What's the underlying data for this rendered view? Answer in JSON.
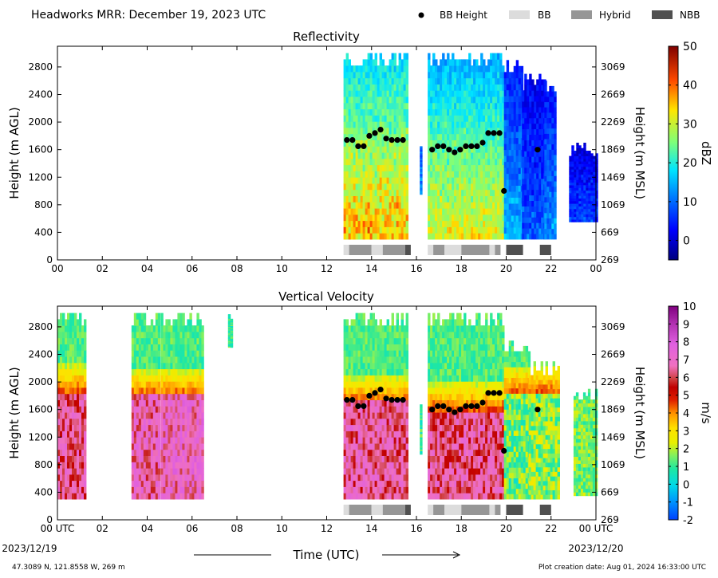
{
  "header": {
    "title": "Headworks MRR:  December 19, 2023 UTC",
    "legend": [
      {
        "label": "BB Height",
        "kind": "dot",
        "color": "#000000"
      },
      {
        "label": "BB",
        "kind": "box",
        "color": "#dcdcdc"
      },
      {
        "label": "Hybrid",
        "kind": "box",
        "color": "#969696"
      },
      {
        "label": "NBB",
        "kind": "box",
        "color": "#505050"
      }
    ]
  },
  "footer": {
    "location": "47.3089 N, 121.8558 W, 269 m",
    "creation": "Plot creation date: Aug 01, 2024 16:33:00 UTC",
    "xlabel": "Time (UTC)",
    "start_label": "00 UTC",
    "start_date": "2023/12/19",
    "end_label": "00 UTC",
    "end_date": "2023/12/20"
  },
  "chart_data": [
    {
      "type": "heatmap",
      "title": "Reflectivity",
      "xlabel": "",
      "ylabel": "Height (m AGL)",
      "ylabel_right": "Height (m MSL)",
      "xlim": [
        0,
        24
      ],
      "ylim": [
        0,
        3100
      ],
      "x_ticks": [
        "00",
        "02",
        "04",
        "06",
        "08",
        "10",
        "12",
        "14",
        "16",
        "18",
        "20",
        "22",
        "00"
      ],
      "y_ticks": [
        0,
        400,
        800,
        1200,
        1600,
        2000,
        2400,
        2800
      ],
      "y_ticks_right": [
        269,
        669,
        1069,
        1469,
        1869,
        2269,
        2669,
        3069
      ],
      "colorbar": {
        "label": "dBZ",
        "min": -5,
        "max": 50,
        "ticks": [
          0,
          10,
          20,
          30,
          40,
          50
        ]
      },
      "data_segments": [
        {
          "start": 12.75,
          "end": 15.6,
          "top": 3000,
          "bottom": 300,
          "core": [
            30,
            42
          ],
          "edge": 15
        },
        {
          "start": 16.15,
          "end": 16.22,
          "top": 1700,
          "bottom": 950,
          "core": [
            10,
            14
          ],
          "edge": 8
        },
        {
          "start": 16.5,
          "end": 19.9,
          "top": 3000,
          "bottom": 300,
          "core": [
            28,
            36
          ],
          "edge": 12
        },
        {
          "start": 19.9,
          "end": 20.7,
          "top": 2900,
          "bottom": 300,
          "core": [
            12,
            18
          ],
          "edge": 3
        },
        {
          "start": 20.7,
          "end": 21.7,
          "top": 2700,
          "bottom": 300,
          "core": [
            6,
            12
          ],
          "edge": 1
        },
        {
          "start": 21.7,
          "end": 22.2,
          "top": 2600,
          "bottom": 300,
          "core": [
            10,
            16
          ],
          "edge": 2
        },
        {
          "start": 22.8,
          "end": 24,
          "top": 1700,
          "bottom": 550,
          "core": [
            4,
            10
          ],
          "edge": 0
        }
      ]
    },
    {
      "type": "heatmap",
      "title": "Vertical Velocity",
      "xlabel": "Time (UTC)",
      "ylabel": "Height (m AGL)",
      "ylabel_right": "Height (m MSL)",
      "xlim": [
        0,
        24
      ],
      "ylim": [
        0,
        3100
      ],
      "x_ticks": [
        "00 UTC",
        "02",
        "04",
        "06",
        "08",
        "10",
        "12",
        "14",
        "16",
        "18",
        "20",
        "22",
        "00 UTC"
      ],
      "y_ticks": [
        0,
        400,
        800,
        1200,
        1600,
        2000,
        2400,
        2800
      ],
      "y_ticks_right": [
        269,
        669,
        1069,
        1469,
        1869,
        2269,
        2669,
        3069
      ],
      "colorbar": {
        "label": "m/s",
        "min": -2,
        "max": 10,
        "ticks": [
          -2,
          -1,
          0,
          1,
          2,
          3,
          4,
          5,
          6,
          7,
          8,
          9,
          10
        ]
      },
      "data_segments": [
        {
          "start": 0.0,
          "end": 1.25,
          "top": 3000,
          "bottom": 300,
          "melt": 2100,
          "core": 7.5
        },
        {
          "start": 3.3,
          "end": 4.5,
          "top": 3000,
          "bottom": 300,
          "melt": 2050,
          "core": 7.8
        },
        {
          "start": 4.6,
          "end": 6.5,
          "top": 3000,
          "bottom": 300,
          "melt": 2050,
          "core": 8.0
        },
        {
          "start": 7.6,
          "end": 7.75,
          "top": 3000,
          "bottom": 2500,
          "melt": 0,
          "core": 1.0
        },
        {
          "start": 12.75,
          "end": 15.6,
          "top": 3000,
          "bottom": 300,
          "melt": 1950,
          "core": 7.6
        },
        {
          "start": 16.15,
          "end": 16.22,
          "top": 1700,
          "bottom": 950,
          "melt": 0,
          "core": 1.0
        },
        {
          "start": 16.5,
          "end": 19.9,
          "top": 3000,
          "bottom": 300,
          "melt": 1850,
          "core": 7.4
        },
        {
          "start": 19.9,
          "end": 21.0,
          "top": 2600,
          "bottom": 300,
          "melt": 2100,
          "core": 2.5
        },
        {
          "start": 21.0,
          "end": 22.3,
          "top": 2300,
          "bottom": 300,
          "melt": 2100,
          "core": 2.8
        },
        {
          "start": 23.0,
          "end": 24,
          "top": 1900,
          "bottom": 350,
          "melt": 0,
          "core": 1.5
        }
      ]
    }
  ],
  "bb_height": {
    "times": [
      12.9,
      13.15,
      13.4,
      13.65,
      13.9,
      14.15,
      14.4,
      14.65,
      14.9,
      15.15,
      15.4,
      16.7,
      16.95,
      17.2,
      17.45,
      17.7,
      17.95,
      18.2,
      18.45,
      18.7,
      18.95,
      19.2,
      19.45,
      19.7,
      19.9,
      21.4
    ],
    "heights": [
      1740,
      1740,
      1650,
      1650,
      1800,
      1840,
      1890,
      1760,
      1740,
      1740,
      1740,
      1600,
      1650,
      1650,
      1600,
      1560,
      1600,
      1650,
      1650,
      1650,
      1700,
      1840,
      1840,
      1840,
      1000,
      1600
    ]
  },
  "bb_type": [
    {
      "start": 12.75,
      "end": 13.0,
      "type": "BB"
    },
    {
      "start": 13.0,
      "end": 14.0,
      "type": "Hybrid"
    },
    {
      "start": 14.0,
      "end": 14.5,
      "type": "BB"
    },
    {
      "start": 14.5,
      "end": 15.5,
      "type": "Hybrid"
    },
    {
      "start": 15.5,
      "end": 15.75,
      "type": "NBB"
    },
    {
      "start": 16.5,
      "end": 16.75,
      "type": "BB"
    },
    {
      "start": 16.75,
      "end": 17.25,
      "type": "Hybrid"
    },
    {
      "start": 17.25,
      "end": 18.0,
      "type": "BB"
    },
    {
      "start": 18.0,
      "end": 19.25,
      "type": "Hybrid"
    },
    {
      "start": 19.25,
      "end": 19.5,
      "type": "BB"
    },
    {
      "start": 19.5,
      "end": 19.75,
      "type": "Hybrid"
    },
    {
      "start": 20.0,
      "end": 20.75,
      "type": "NBB"
    },
    {
      "start": 21.5,
      "end": 22.0,
      "type": "NBB"
    }
  ]
}
